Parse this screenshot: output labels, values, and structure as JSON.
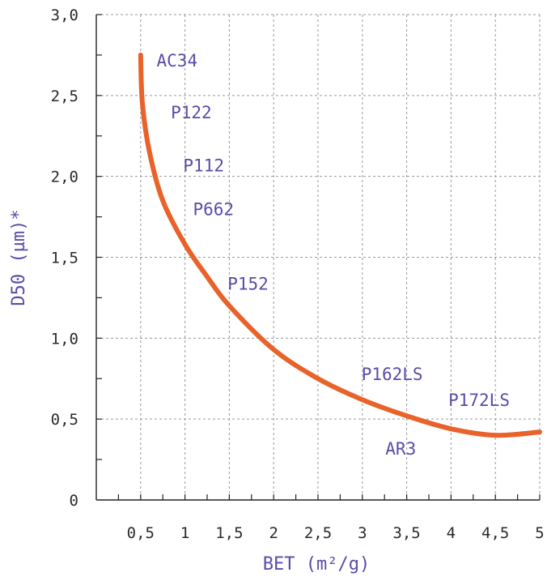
{
  "colors": {
    "curve": "#e8622a",
    "label": "#5b4ca6",
    "tick": "#2a2a2a",
    "grid": "#9a9a9a",
    "axis": "#222222"
  },
  "chart_data": {
    "type": "line",
    "xlabel": "BET (m²/g)",
    "ylabel": "D50 (µm)*",
    "xlim": [
      0,
      5
    ],
    "ylim": [
      0,
      3.0
    ],
    "grid": true,
    "x_ticks": [
      {
        "value": 0.5,
        "label": "0,5"
      },
      {
        "value": 1,
        "label": "1"
      },
      {
        "value": 1.5,
        "label": "1,5"
      },
      {
        "value": 2,
        "label": "2"
      },
      {
        "value": 2.5,
        "label": "2,5"
      },
      {
        "value": 3,
        "label": "3"
      },
      {
        "value": 3.5,
        "label": "3,5"
      },
      {
        "value": 4,
        "label": "4"
      },
      {
        "value": 4.5,
        "label": "4,5"
      },
      {
        "value": 5,
        "label": "5"
      }
    ],
    "y_ticks": [
      {
        "value": 0,
        "label": "0"
      },
      {
        "value": 0.5,
        "label": "0,5"
      },
      {
        "value": 1.0,
        "label": "1,0"
      },
      {
        "value": 1.5,
        "label": "1,5"
      },
      {
        "value": 2.0,
        "label": "2,0"
      },
      {
        "value": 2.5,
        "label": "2,5"
      },
      {
        "value": 3.0,
        "label": "3,0"
      }
    ],
    "series": [
      {
        "x": [
          0.5,
          0.52,
          0.6,
          0.75,
          1.0,
          1.25,
          1.5,
          2.0,
          2.5,
          3.0,
          3.5,
          4.0,
          4.5,
          5.0
        ],
        "y": [
          2.75,
          2.45,
          2.15,
          1.85,
          1.58,
          1.38,
          1.2,
          0.93,
          0.75,
          0.62,
          0.52,
          0.44,
          0.4,
          0.42
        ]
      }
    ],
    "annotations": [
      {
        "text": "AC34",
        "x": 0.68,
        "y": 2.68
      },
      {
        "text": "P122",
        "x": 0.84,
        "y": 2.36
      },
      {
        "text": "P112",
        "x": 0.98,
        "y": 2.03
      },
      {
        "text": "P662",
        "x": 1.09,
        "y": 1.76
      },
      {
        "text": "P152",
        "x": 1.48,
        "y": 1.3
      },
      {
        "text": "P162LS",
        "x": 2.99,
        "y": 0.74
      },
      {
        "text": "P172LS",
        "x": 3.97,
        "y": 0.58
      },
      {
        "text": "AR3",
        "x": 3.26,
        "y": 0.28
      }
    ]
  }
}
